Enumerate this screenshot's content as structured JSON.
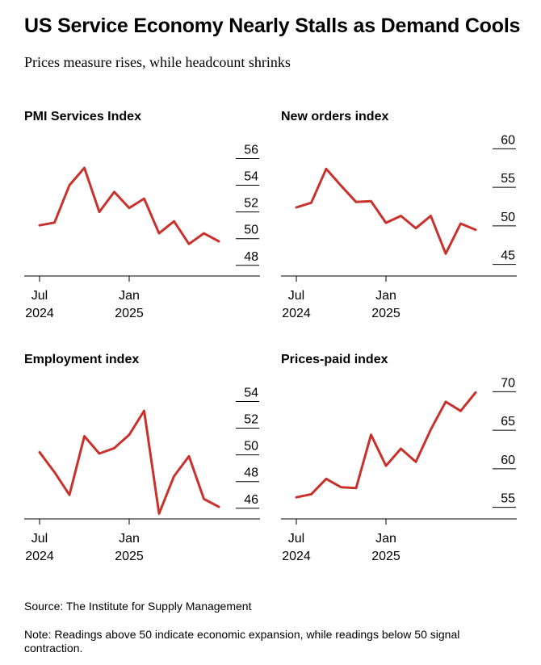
{
  "header": {
    "title": "US Service Economy Nearly Stalls as Demand Cools",
    "subtitle": "Prices measure rises, while headcount shrinks"
  },
  "colors": {
    "line": "#c8322d",
    "axis": "#000000"
  },
  "chart_data": [
    {
      "type": "line",
      "title": "PMI Services Index",
      "x": [
        "2024-07",
        "2024-08",
        "2024-09",
        "2024-10",
        "2024-11",
        "2024-12",
        "2025-01",
        "2025-02",
        "2025-03",
        "2025-04",
        "2025-05",
        "2025-06",
        "2025-07"
      ],
      "x_ticks": [
        {
          "at": "2024-07",
          "label": [
            "Jul",
            "2024"
          ]
        },
        {
          "at": "2025-01",
          "label": [
            "Jan",
            "2025"
          ]
        }
      ],
      "series": [
        {
          "values": [
            51.0,
            51.2,
            54.0,
            55.3,
            52.0,
            53.5,
            52.3,
            53.0,
            50.4,
            51.3,
            49.6,
            50.4,
            49.8
          ]
        }
      ],
      "yticks": [
        48,
        50,
        52,
        54,
        56
      ],
      "ylim": [
        47.2,
        57.6
      ],
      "y_axis_position": "right",
      "grid": false
    },
    {
      "type": "line",
      "title": "New orders index",
      "x": [
        "2024-07",
        "2024-08",
        "2024-09",
        "2024-10",
        "2024-11",
        "2024-12",
        "2025-01",
        "2025-02",
        "2025-03",
        "2025-04",
        "2025-05",
        "2025-06",
        "2025-07"
      ],
      "x_ticks": [
        {
          "at": "2024-07",
          "label": [
            "Jul",
            "2024"
          ]
        },
        {
          "at": "2025-01",
          "label": [
            "Jan",
            "2025"
          ]
        }
      ],
      "series": [
        {
          "values": [
            52.4,
            53.0,
            57.4,
            55.2,
            53.1,
            53.2,
            50.4,
            51.3,
            49.7,
            51.3,
            46.4,
            50.3,
            49.5
          ]
        }
      ],
      "yticks": [
        45,
        50,
        55,
        60
      ],
      "ylim": [
        43.5,
        61.5
      ],
      "y_axis_position": "right",
      "grid": false
    },
    {
      "type": "line",
      "title": "Employment index",
      "x": [
        "2024-07",
        "2024-08",
        "2024-09",
        "2024-10",
        "2024-11",
        "2024-12",
        "2025-01",
        "2025-02",
        "2025-03",
        "2025-04",
        "2025-05",
        "2025-06",
        "2025-07"
      ],
      "x_ticks": [
        {
          "at": "2024-07",
          "label": [
            "Jul",
            "2024"
          ]
        },
        {
          "at": "2025-01",
          "label": [
            "Jan",
            "2025"
          ]
        }
      ],
      "series": [
        {
          "values": [
            50.2,
            48.7,
            47.0,
            51.4,
            50.1,
            50.5,
            51.5,
            53.3,
            45.6,
            48.4,
            49.9,
            46.7,
            46.1
          ]
        }
      ],
      "yticks": [
        46,
        48,
        50,
        52,
        54
      ],
      "ylim": [
        45.2,
        55.6
      ],
      "y_axis_position": "right",
      "grid": false
    },
    {
      "type": "line",
      "title": "Prices-paid index",
      "x": [
        "2024-07",
        "2024-08",
        "2024-09",
        "2024-10",
        "2024-11",
        "2024-12",
        "2025-01",
        "2025-02",
        "2025-03",
        "2025-04",
        "2025-05",
        "2025-06",
        "2025-07"
      ],
      "x_ticks": [
        {
          "at": "2024-07",
          "label": [
            "Jul",
            "2024"
          ]
        },
        {
          "at": "2025-01",
          "label": [
            "Jan",
            "2025"
          ]
        }
      ],
      "series": [
        {
          "values": [
            56.3,
            56.7,
            58.7,
            57.6,
            57.5,
            64.4,
            60.4,
            62.6,
            60.9,
            65.1,
            68.7,
            67.5,
            69.9
          ]
        }
      ],
      "yticks": [
        55,
        60,
        65,
        70
      ],
      "ylim": [
        53.5,
        71.5
      ],
      "y_axis_position": "right",
      "grid": false
    }
  ],
  "footer": {
    "source": "Source: The Institute for Supply Management",
    "note": "Note: Readings above 50 indicate economic expansion, while readings below 50 signal contraction."
  }
}
